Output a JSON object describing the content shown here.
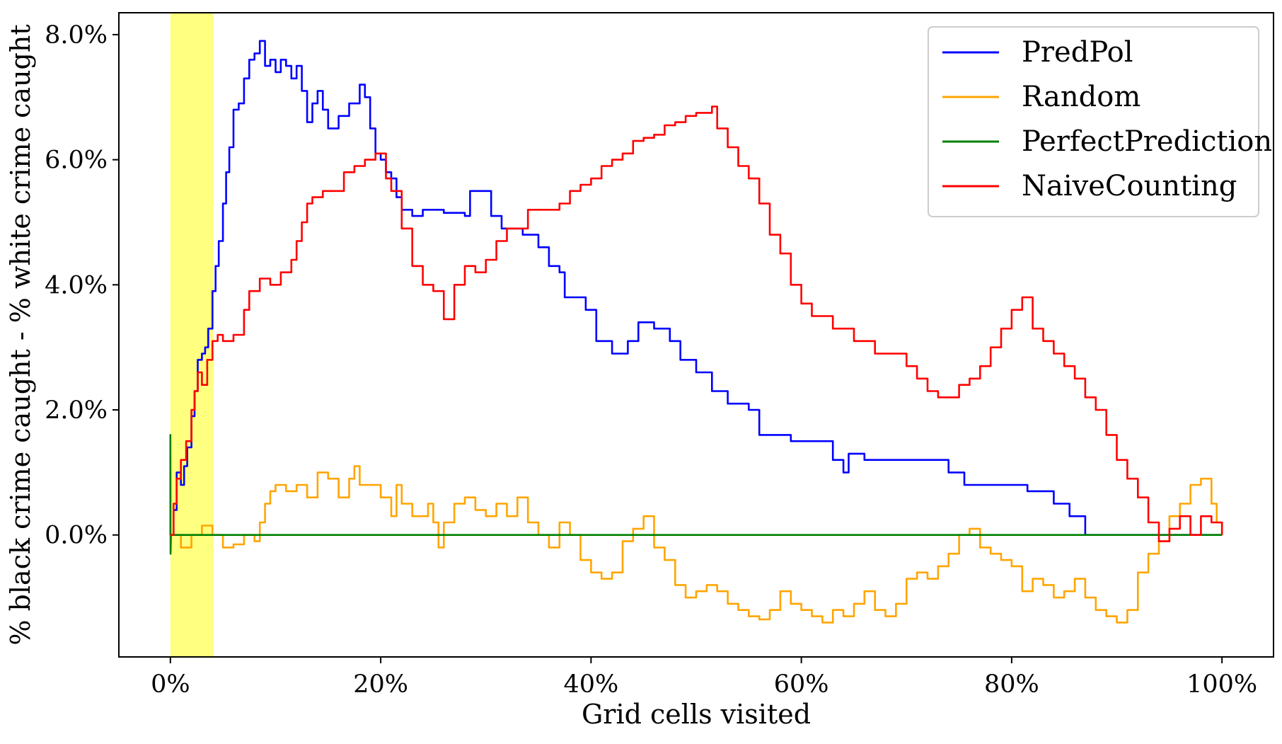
{
  "chart_data": {
    "type": "line",
    "title": "",
    "xlabel": "Grid cells visited",
    "ylabel": "% black crime caught - % white crime caught",
    "xlim": [
      -4.9,
      104.9
    ],
    "ylim": [
      -1.95,
      8.35
    ],
    "x_ticks": [
      {
        "value": 0,
        "label": "0%"
      },
      {
        "value": 20,
        "label": "20%"
      },
      {
        "value": 40,
        "label": "40%"
      },
      {
        "value": 60,
        "label": "60%"
      },
      {
        "value": 80,
        "label": "80%"
      },
      {
        "value": 100,
        "label": "100%"
      }
    ],
    "y_ticks": [
      {
        "value": 0,
        "label": "0.0%"
      },
      {
        "value": 2,
        "label": "2.0%"
      },
      {
        "value": 4,
        "label": "4.0%"
      },
      {
        "value": 6,
        "label": "6.0%"
      },
      {
        "value": 8,
        "label": "8.0%"
      }
    ],
    "grid": false,
    "legend_position": "top-right",
    "highlight_band": {
      "x_start": 0,
      "x_end": 4.1,
      "color": "#ffff80"
    },
    "series": [
      {
        "name": "PredPol",
        "color": "#0000ff",
        "step": true,
        "points": [
          [
            0,
            0
          ],
          [
            0.3,
            0.4
          ],
          [
            0.6,
            1.0
          ],
          [
            1.0,
            0.8
          ],
          [
            1.3,
            1.1
          ],
          [
            1.6,
            1.4
          ],
          [
            2.0,
            1.9
          ],
          [
            2.3,
            2.3
          ],
          [
            2.6,
            2.8
          ],
          [
            3.0,
            2.9
          ],
          [
            3.3,
            3.0
          ],
          [
            3.6,
            3.3
          ],
          [
            4.0,
            3.9
          ],
          [
            4.3,
            4.3
          ],
          [
            4.6,
            4.7
          ],
          [
            5.0,
            5.3
          ],
          [
            5.3,
            5.8
          ],
          [
            5.6,
            6.2
          ],
          [
            6.0,
            6.8
          ],
          [
            6.5,
            6.9
          ],
          [
            7.0,
            7.3
          ],
          [
            7.5,
            7.6
          ],
          [
            8.0,
            7.7
          ],
          [
            8.5,
            7.9
          ],
          [
            9.0,
            7.5
          ],
          [
            9.5,
            7.6
          ],
          [
            10.0,
            7.4
          ],
          [
            10.5,
            7.6
          ],
          [
            11.0,
            7.5
          ],
          [
            11.5,
            7.3
          ],
          [
            12.0,
            7.5
          ],
          [
            12.5,
            7.1
          ],
          [
            13.0,
            6.6
          ],
          [
            13.5,
            6.9
          ],
          [
            14.0,
            7.1
          ],
          [
            14.5,
            6.8
          ],
          [
            15.0,
            6.5
          ],
          [
            16.0,
            6.7
          ],
          [
            17.0,
            6.9
          ],
          [
            18.0,
            7.2
          ],
          [
            18.5,
            7.0
          ],
          [
            19.0,
            6.5
          ],
          [
            19.5,
            6.1
          ],
          [
            20.0,
            6.0
          ],
          [
            20.5,
            5.8
          ],
          [
            21.0,
            5.7
          ],
          [
            21.5,
            5.4
          ],
          [
            22.0,
            5.2
          ],
          [
            23.0,
            5.1
          ],
          [
            24.0,
            5.2
          ],
          [
            26.0,
            5.15
          ],
          [
            28.0,
            5.1
          ],
          [
            28.5,
            5.5
          ],
          [
            29.5,
            5.5
          ],
          [
            30.5,
            5.1
          ],
          [
            31.5,
            4.9
          ],
          [
            33.5,
            4.8
          ],
          [
            35.0,
            4.6
          ],
          [
            36.0,
            4.3
          ],
          [
            37.0,
            4.2
          ],
          [
            37.5,
            3.8
          ],
          [
            39.5,
            3.6
          ],
          [
            40.5,
            3.1
          ],
          [
            42.0,
            2.9
          ],
          [
            43.5,
            3.1
          ],
          [
            44.5,
            3.4
          ],
          [
            46.0,
            3.3
          ],
          [
            47.5,
            3.1
          ],
          [
            48.5,
            2.8
          ],
          [
            50.0,
            2.6
          ],
          [
            51.5,
            2.3
          ],
          [
            53.0,
            2.1
          ],
          [
            55.0,
            2.0
          ],
          [
            56.0,
            1.6
          ],
          [
            58.0,
            1.6
          ],
          [
            59.0,
            1.5
          ],
          [
            63.0,
            1.2
          ],
          [
            64.0,
            1.0
          ],
          [
            64.5,
            1.3
          ],
          [
            66.0,
            1.2
          ],
          [
            74.0,
            1.0
          ],
          [
            75.5,
            0.8
          ],
          [
            81.5,
            0.7
          ],
          [
            84.0,
            0.5
          ],
          [
            85.5,
            0.3
          ],
          [
            87.0,
            0.0
          ],
          [
            100,
            0.0
          ]
        ]
      },
      {
        "name": "Random",
        "color": "#ffa500",
        "step": true,
        "points": [
          [
            0,
            0
          ],
          [
            1.0,
            -0.2
          ],
          [
            2.0,
            0.0
          ],
          [
            3.0,
            0.15
          ],
          [
            4.0,
            0.0
          ],
          [
            5.0,
            -0.2
          ],
          [
            6.0,
            -0.15
          ],
          [
            7.0,
            0.0
          ],
          [
            8.0,
            -0.1
          ],
          [
            8.5,
            0.2
          ],
          [
            9.0,
            0.5
          ],
          [
            9.5,
            0.7
          ],
          [
            10.0,
            0.8
          ],
          [
            11.0,
            0.7
          ],
          [
            12.0,
            0.8
          ],
          [
            13.0,
            0.6
          ],
          [
            14.0,
            1.0
          ],
          [
            15.0,
            0.9
          ],
          [
            16.0,
            0.6
          ],
          [
            17.0,
            0.9
          ],
          [
            17.5,
            1.1
          ],
          [
            18.0,
            0.8
          ],
          [
            19.0,
            0.8
          ],
          [
            20.0,
            0.6
          ],
          [
            21.0,
            0.3
          ],
          [
            21.5,
            0.8
          ],
          [
            22.0,
            0.5
          ],
          [
            23.0,
            0.3
          ],
          [
            24.5,
            0.5
          ],
          [
            25.0,
            0.2
          ],
          [
            25.5,
            -0.2
          ],
          [
            26.0,
            0.2
          ],
          [
            27.0,
            0.5
          ],
          [
            28.0,
            0.6
          ],
          [
            29.0,
            0.4
          ],
          [
            30.0,
            0.3
          ],
          [
            31.0,
            0.5
          ],
          [
            32.0,
            0.3
          ],
          [
            33.0,
            0.6
          ],
          [
            34.0,
            0.2
          ],
          [
            35.0,
            0.0
          ],
          [
            36.0,
            -0.2
          ],
          [
            37.0,
            0.2
          ],
          [
            38.0,
            0.0
          ],
          [
            39.0,
            -0.4
          ],
          [
            40.0,
            -0.6
          ],
          [
            41.0,
            -0.7
          ],
          [
            42.0,
            -0.6
          ],
          [
            43.0,
            -0.1
          ],
          [
            44.0,
            0.1
          ],
          [
            45.0,
            0.3
          ],
          [
            46.0,
            -0.2
          ],
          [
            47.0,
            -0.4
          ],
          [
            48.0,
            -0.8
          ],
          [
            49.0,
            -1.0
          ],
          [
            50.0,
            -0.9
          ],
          [
            51.0,
            -0.8
          ],
          [
            52.0,
            -0.9
          ],
          [
            53.0,
            -1.1
          ],
          [
            54.0,
            -1.2
          ],
          [
            55.0,
            -1.3
          ],
          [
            56.0,
            -1.35
          ],
          [
            57.0,
            -1.2
          ],
          [
            58.0,
            -0.9
          ],
          [
            59.0,
            -1.1
          ],
          [
            60.0,
            -1.2
          ],
          [
            61.0,
            -1.3
          ],
          [
            62.0,
            -1.4
          ],
          [
            63.0,
            -1.2
          ],
          [
            64.0,
            -1.3
          ],
          [
            65.0,
            -1.1
          ],
          [
            66.0,
            -0.9
          ],
          [
            67.0,
            -1.2
          ],
          [
            68.0,
            -1.3
          ],
          [
            69.0,
            -1.1
          ],
          [
            70.0,
            -0.7
          ],
          [
            71.0,
            -0.6
          ],
          [
            72.0,
            -0.7
          ],
          [
            73.0,
            -0.5
          ],
          [
            74.0,
            -0.3
          ],
          [
            75.0,
            0.0
          ],
          [
            76.0,
            0.1
          ],
          [
            77.0,
            -0.2
          ],
          [
            78.0,
            -0.3
          ],
          [
            79.0,
            -0.4
          ],
          [
            80.0,
            -0.5
          ],
          [
            81.0,
            -0.9
          ],
          [
            82.0,
            -0.7
          ],
          [
            83.0,
            -0.8
          ],
          [
            84.0,
            -1.0
          ],
          [
            85.0,
            -0.9
          ],
          [
            86.0,
            -0.7
          ],
          [
            87.0,
            -1.0
          ],
          [
            88.0,
            -1.2
          ],
          [
            89.0,
            -1.3
          ],
          [
            90.0,
            -1.4
          ],
          [
            91.0,
            -1.2
          ],
          [
            92.0,
            -0.6
          ],
          [
            93.0,
            -0.3
          ],
          [
            94.0,
            -0.1
          ],
          [
            95.0,
            0.3
          ],
          [
            96.0,
            0.5
          ],
          [
            97.0,
            0.8
          ],
          [
            98.0,
            0.9
          ],
          [
            99.0,
            0.5
          ],
          [
            99.5,
            0.2
          ],
          [
            100,
            0.0
          ]
        ]
      },
      {
        "name": "PerfectPrediction",
        "color": "#008000",
        "step": false,
        "points": [
          [
            0,
            0
          ],
          [
            0.0,
            1.6
          ],
          [
            0.02,
            -0.3
          ],
          [
            0.05,
            0.0
          ],
          [
            100,
            0.0
          ]
        ]
      },
      {
        "name": "NaiveCounting",
        "color": "#ff0000",
        "step": true,
        "points": [
          [
            0,
            0
          ],
          [
            0.3,
            0.5
          ],
          [
            0.6,
            0.9
          ],
          [
            1.0,
            1.2
          ],
          [
            1.5,
            1.5
          ],
          [
            2.0,
            2.0
          ],
          [
            2.3,
            2.3
          ],
          [
            2.6,
            2.6
          ],
          [
            3.0,
            2.4
          ],
          [
            3.5,
            2.8
          ],
          [
            4.0,
            3.1
          ],
          [
            4.5,
            3.2
          ],
          [
            5.0,
            3.1
          ],
          [
            6.0,
            3.2
          ],
          [
            7.0,
            3.6
          ],
          [
            7.5,
            3.9
          ],
          [
            8.5,
            4.1
          ],
          [
            9.5,
            4.0
          ],
          [
            10.5,
            4.2
          ],
          [
            11.5,
            4.4
          ],
          [
            12.0,
            4.7
          ],
          [
            12.5,
            5.0
          ],
          [
            13.0,
            5.3
          ],
          [
            13.5,
            5.4
          ],
          [
            14.5,
            5.5
          ],
          [
            15.5,
            5.5
          ],
          [
            16.5,
            5.8
          ],
          [
            17.5,
            5.9
          ],
          [
            18.5,
            6.0
          ],
          [
            19.5,
            6.1
          ],
          [
            20.5,
            5.7
          ],
          [
            21.0,
            5.5
          ],
          [
            22.0,
            4.9
          ],
          [
            23.0,
            4.3
          ],
          [
            24.0,
            4.0
          ],
          [
            25.0,
            3.9
          ],
          [
            26.0,
            3.45
          ],
          [
            27.0,
            4.0
          ],
          [
            28.0,
            4.3
          ],
          [
            29.0,
            4.2
          ],
          [
            30.0,
            4.4
          ],
          [
            31.0,
            4.7
          ],
          [
            32.0,
            4.9
          ],
          [
            33.0,
            4.9
          ],
          [
            34.0,
            5.2
          ],
          [
            36.0,
            5.2
          ],
          [
            37.0,
            5.3
          ],
          [
            38.0,
            5.5
          ],
          [
            39.0,
            5.6
          ],
          [
            40.0,
            5.7
          ],
          [
            41.0,
            5.9
          ],
          [
            42.0,
            6.0
          ],
          [
            43.0,
            6.1
          ],
          [
            44.0,
            6.3
          ],
          [
            45.0,
            6.35
          ],
          [
            46.0,
            6.4
          ],
          [
            47.0,
            6.55
          ],
          [
            48.0,
            6.6
          ],
          [
            49.0,
            6.7
          ],
          [
            50.0,
            6.75
          ],
          [
            51.5,
            6.85
          ],
          [
            52.0,
            6.5
          ],
          [
            53.0,
            6.2
          ],
          [
            54.0,
            5.9
          ],
          [
            55.0,
            5.7
          ],
          [
            56.0,
            5.3
          ],
          [
            57.0,
            4.8
          ],
          [
            58.0,
            4.5
          ],
          [
            59.0,
            4.0
          ],
          [
            60.0,
            3.7
          ],
          [
            61.0,
            3.5
          ],
          [
            63.0,
            3.3
          ],
          [
            65.0,
            3.1
          ],
          [
            67.0,
            2.9
          ],
          [
            70.0,
            2.7
          ],
          [
            71.0,
            2.5
          ],
          [
            72.0,
            2.3
          ],
          [
            73.0,
            2.2
          ],
          [
            75.0,
            2.4
          ],
          [
            76.0,
            2.5
          ],
          [
            77.0,
            2.7
          ],
          [
            78.0,
            3.0
          ],
          [
            79.0,
            3.3
          ],
          [
            80.0,
            3.6
          ],
          [
            81.0,
            3.8
          ],
          [
            82.0,
            3.3
          ],
          [
            83.0,
            3.1
          ],
          [
            84.0,
            2.9
          ],
          [
            85.0,
            2.7
          ],
          [
            86.0,
            2.5
          ],
          [
            87.0,
            2.2
          ],
          [
            88.0,
            2.0
          ],
          [
            89.0,
            1.6
          ],
          [
            90.0,
            1.2
          ],
          [
            91.0,
            0.9
          ],
          [
            92.0,
            0.6
          ],
          [
            93.0,
            0.2
          ],
          [
            94.0,
            -0.1
          ],
          [
            95.0,
            0.1
          ],
          [
            96.0,
            0.3
          ],
          [
            97.0,
            0.0
          ],
          [
            98.0,
            0.3
          ],
          [
            99.0,
            0.2
          ],
          [
            100,
            0.0
          ]
        ]
      }
    ]
  }
}
